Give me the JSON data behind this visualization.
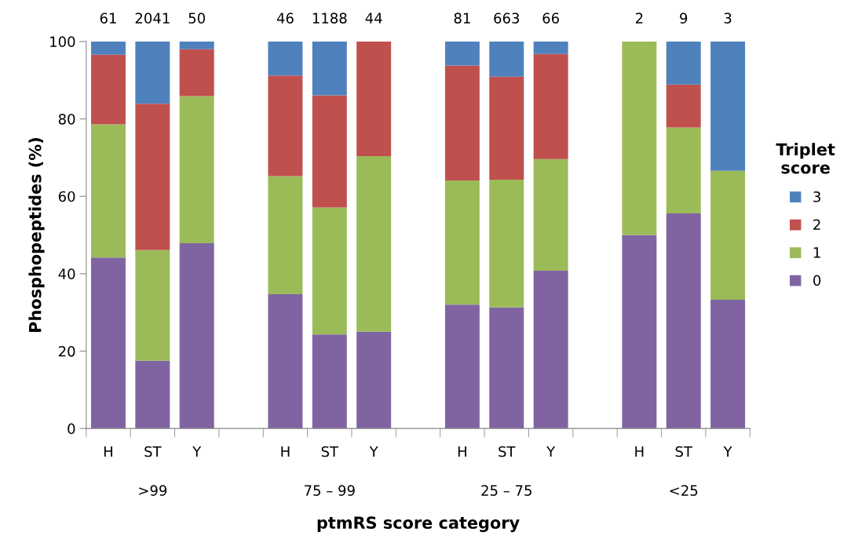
{
  "chart_data": {
    "type": "bar",
    "stacked": true,
    "categories": [
      "H",
      "ST",
      "Y",
      null,
      "H",
      "ST",
      "Y",
      null,
      "H",
      "ST",
      "Y",
      null,
      "H",
      "ST",
      "Y"
    ],
    "series": [
      {
        "name": "0",
        "color": "#8064a2",
        "values": [
          44.2,
          17.5,
          47.9,
          null,
          34.7,
          24.3,
          25.0,
          null,
          32.0,
          31.3,
          40.8,
          null,
          50,
          55.6,
          33.3
        ]
      },
      {
        "name": "1",
        "color": "#9bbb59",
        "values": [
          34.4,
          28.6,
          38.0,
          null,
          30.5,
          32.8,
          45.4,
          null,
          32.1,
          33.0,
          28.8,
          null,
          50,
          22.2,
          33.3
        ]
      },
      {
        "name": "2",
        "color": "#c0504d",
        "values": [
          18.0,
          37.8,
          12.1,
          null,
          26.0,
          29.0,
          29.6,
          null,
          29.7,
          26.6,
          27.2,
          null,
          0,
          11.1,
          0
        ]
      },
      {
        "name": "3",
        "color": "#4f81bd",
        "values": [
          3.4,
          16.1,
          2.0,
          null,
          8.8,
          13.9,
          0,
          null,
          6.2,
          9.1,
          3.2,
          null,
          0,
          11.1,
          33.4
        ]
      }
    ],
    "annotations": [
      ">99",
      "75 – 99",
      "25 – 75",
      "<25",
      "61",
      "2041",
      "50",
      "46",
      "1188",
      "44",
      "81",
      "663",
      "66",
      "2",
      "9",
      "3"
    ],
    "ylabel": "Phosphopeptides (%)",
    "xlabel": "ptmRS score category",
    "legend_title": "Triplet\nscore",
    "ylim": [
      0,
      100
    ],
    "yticks": [
      0,
      20,
      40,
      60,
      80,
      100
    ],
    "grid": false,
    "legend": "right"
  }
}
